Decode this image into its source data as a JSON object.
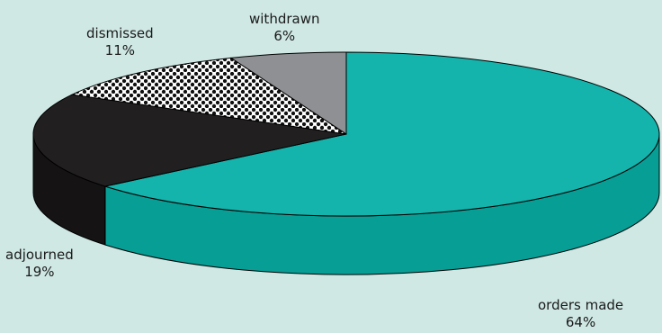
{
  "chart_data": {
    "type": "pie",
    "style": "3d",
    "background": "#cfe8e4",
    "slices": [
      {
        "label": "orders made",
        "value": 64,
        "value_text": "64%",
        "fill": "#14b4ac",
        "side": "#079e95"
      },
      {
        "label": "adjourned",
        "value": 19,
        "value_text": "19%",
        "fill": "#221f20",
        "side": "#151313"
      },
      {
        "label": "dismissed",
        "value": 11,
        "value_text": "11%",
        "fill": "pattern-checker",
        "side": "#222222"
      },
      {
        "label": "withdrawn",
        "value": 6,
        "value_text": "6%",
        "fill": "#8f9093",
        "side": "#6e6f72"
      }
    ]
  }
}
